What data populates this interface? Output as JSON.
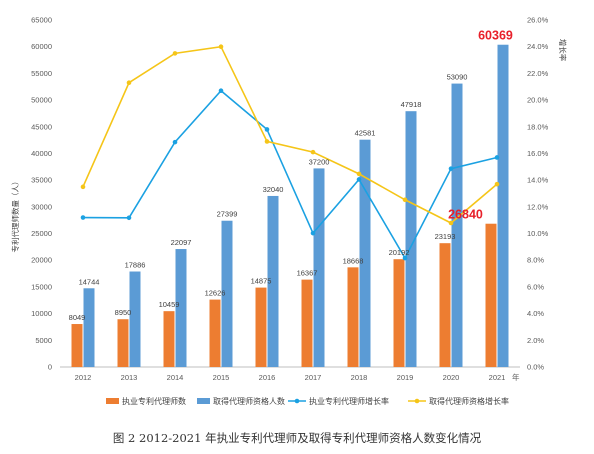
{
  "caption": "图 2   2012-2021 年执业专利代理师及取得专利代理师资格人数变化情况",
  "chart_data": {
    "type": "bar",
    "categories": [
      "2012",
      "2013",
      "2014",
      "2015",
      "2016",
      "2017",
      "2018",
      "2019",
      "2020",
      "2021"
    ],
    "xlabel": "年",
    "ylabel": "专利代理师数量（人）",
    "y2label": "增长率",
    "ylim": [
      0,
      65000
    ],
    "y2lim": [
      0,
      0.26
    ],
    "yticks": [
      "0",
      "5000",
      "10000",
      "15000",
      "20000",
      "25000",
      "30000",
      "35000",
      "40000",
      "45000",
      "50000",
      "55000",
      "60000",
      "65000"
    ],
    "y2ticks": [
      "0.0%",
      "2.0%",
      "4.0%",
      "6.0%",
      "8.0%",
      "10.0%",
      "12.0%",
      "14.0%",
      "16.0%",
      "18.0%",
      "20.0%",
      "22.0%",
      "24.0%",
      "26.0%"
    ],
    "grid": false,
    "legend": "bottom",
    "series": [
      {
        "name": "执业专利代理师数",
        "type": "bar",
        "color": "#ed7d31",
        "values": [
          8049,
          8950,
          10459,
          12626,
          14875,
          16367,
          18668,
          20192,
          23193,
          26840
        ],
        "labels": [
          "8049",
          "8950",
          "10459",
          "12626",
          "14875",
          "16367",
          "18668",
          "20192",
          "23193",
          "26840"
        ]
      },
      {
        "name": "取得代理师资格人数",
        "type": "bar",
        "color": "#5b9bd5",
        "values": [
          14744,
          17886,
          22097,
          27399,
          32040,
          37200,
          42581,
          47918,
          53090,
          60369
        ],
        "labels": [
          "14744",
          "17886",
          "22097",
          "27399",
          "32040",
          "37200",
          "42581",
          "47918",
          "53090",
          "60369"
        ]
      },
      {
        "name": "执业专利代理师增长率",
        "type": "line",
        "axis": "right",
        "color": "#1ba1e2",
        "values": [
          0.112,
          0.1118,
          0.1685,
          0.207,
          0.178,
          0.1003,
          0.1405,
          0.0816,
          0.1486,
          0.157
        ]
      },
      {
        "name": "取得代理师资格增长率",
        "type": "line",
        "axis": "right",
        "color": "#f5c518",
        "values": [
          0.135,
          0.213,
          0.235,
          0.24,
          0.169,
          0.161,
          0.1447,
          0.1253,
          0.1079,
          0.137
        ]
      }
    ],
    "highlight_labels": [
      "60369",
      "26840"
    ]
  }
}
